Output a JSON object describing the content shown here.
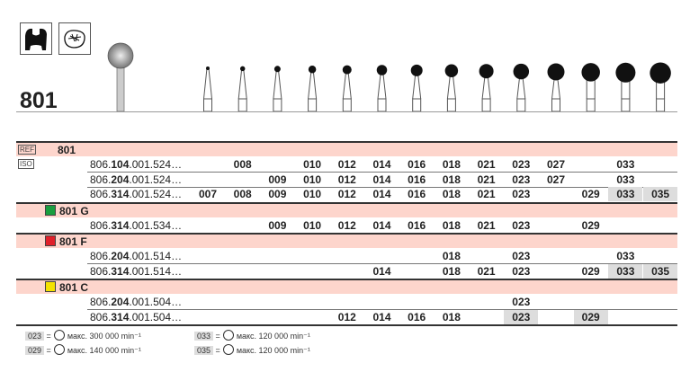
{
  "title": "801",
  "icons": [
    "crown-shape-icon",
    "occlusal-preparation-icon"
  ],
  "columns": [
    "007",
    "008",
    "009",
    "010",
    "012",
    "014",
    "016",
    "018",
    "021",
    "023",
    "027",
    "029",
    "033",
    "035"
  ],
  "ref_tag": "REF",
  "iso_tag": "ISO",
  "groups": [
    {
      "label": "801",
      "color": null,
      "rows": [
        {
          "pre": "806.",
          "bold": "104",
          "post": ".001.524…",
          "cells": [
            "",
            "008",
            "",
            "010",
            "012",
            "014",
            "016",
            "018",
            "021",
            "023",
            "027",
            "",
            "033",
            ""
          ],
          "hl": []
        },
        {
          "pre": "806.",
          "bold": "204",
          "post": ".001.524…",
          "cells": [
            "",
            "",
            "009",
            "010",
            "012",
            "014",
            "016",
            "018",
            "021",
            "023",
            "027",
            "",
            "033",
            ""
          ],
          "hl": []
        },
        {
          "pre": "806.",
          "bold": "314",
          "post": ".001.524…",
          "cells": [
            "007",
            "008",
            "009",
            "010",
            "012",
            "014",
            "016",
            "018",
            "021",
            "023",
            "",
            "029",
            "033",
            "035"
          ],
          "hl": [
            12,
            13
          ]
        }
      ]
    },
    {
      "label": "801 G",
      "color": "#1a9e3f",
      "rows": [
        {
          "pre": "806.",
          "bold": "314",
          "post": ".001.534…",
          "cells": [
            "",
            "",
            "009",
            "010",
            "012",
            "014",
            "016",
            "018",
            "021",
            "023",
            "",
            "029",
            "",
            ""
          ],
          "hl": []
        }
      ]
    },
    {
      "label": "801 F",
      "color": "#e0202a",
      "rows": [
        {
          "pre": "806.",
          "bold": "204",
          "post": ".001.514…",
          "cells": [
            "",
            "",
            "",
            "",
            "",
            "",
            "",
            "018",
            "",
            "023",
            "",
            "",
            "033",
            ""
          ],
          "hl": []
        },
        {
          "pre": "806.",
          "bold": "314",
          "post": ".001.514…",
          "cells": [
            "",
            "",
            "",
            "",
            "",
            "014",
            "",
            "018",
            "021",
            "023",
            "",
            "029",
            "033",
            "035"
          ],
          "hl": [
            12,
            13
          ]
        }
      ]
    },
    {
      "label": "801 C",
      "color": "#f4e200",
      "rows": [
        {
          "pre": "806.",
          "bold": "204",
          "post": ".001.504…",
          "cells": [
            "",
            "",
            "",
            "",
            "",
            "",
            "",
            "",
            "",
            "023",
            "",
            "",
            "",
            ""
          ],
          "hl": []
        },
        {
          "pre": "806.",
          "bold": "314",
          "post": ".001.504…",
          "cells": [
            "",
            "",
            "",
            "",
            "012",
            "014",
            "016",
            "018",
            "",
            "023",
            "",
            "029",
            "",
            ""
          ],
          "hl": [
            9,
            11
          ]
        }
      ]
    }
  ],
  "legend": [
    {
      "size": "023",
      "text": "макс. 300 000 min⁻¹"
    },
    {
      "size": "033",
      "text": "макс. 120 000 min⁻¹"
    },
    {
      "size": "029",
      "text": "макс. 140 000 min⁻¹"
    },
    {
      "size": "035",
      "text": "макс. 120 000 min⁻¹"
    }
  ],
  "legend_eq": "="
}
